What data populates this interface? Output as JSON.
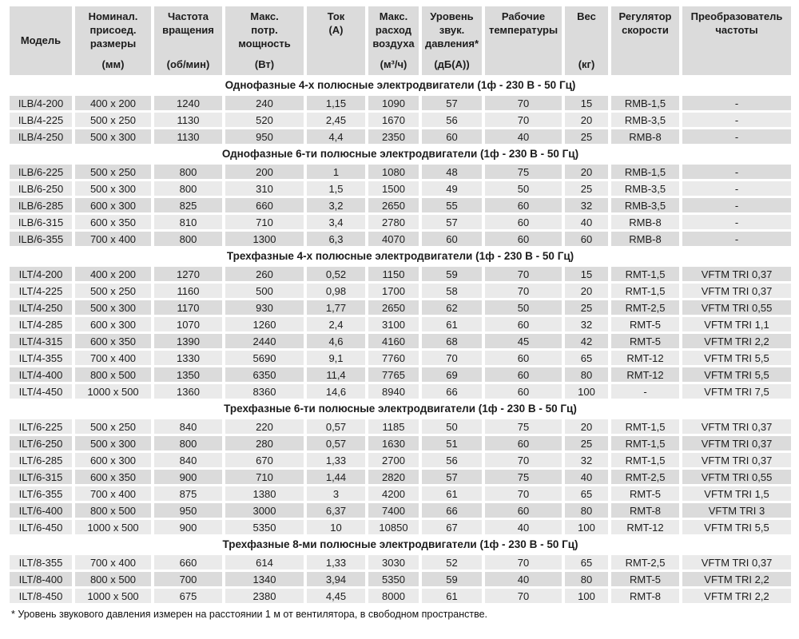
{
  "table": {
    "columns": [
      {
        "lines": [
          "Модель"
        ],
        "unit": "",
        "valign": "center"
      },
      {
        "lines": [
          "Номинал.",
          "присоед.",
          "размеры"
        ],
        "unit": "(мм)",
        "valign": "between"
      },
      {
        "lines": [
          "Частота",
          "вращения"
        ],
        "unit": "(об/мин)",
        "valign": "between"
      },
      {
        "lines": [
          "Макс.",
          "потр.",
          "мощность"
        ],
        "unit": "(Вт)",
        "valign": "between"
      },
      {
        "lines": [
          "Ток",
          "(А)"
        ],
        "unit": "",
        "valign": "top"
      },
      {
        "lines": [
          "Макс.",
          "расход",
          "воздуха"
        ],
        "unit": "(м³/ч)",
        "valign": "between"
      },
      {
        "lines": [
          "Уровень",
          "звук.",
          "давления*"
        ],
        "unit": "(дБ(А))",
        "valign": "between"
      },
      {
        "lines": [
          "Рабочие",
          "температуры"
        ],
        "unit": "",
        "valign": "top"
      },
      {
        "lines": [
          "Вес"
        ],
        "unit": "(кг)",
        "valign": "between"
      },
      {
        "lines": [
          "Регулятор",
          "скорости"
        ],
        "unit": "",
        "valign": "top"
      },
      {
        "lines": [
          "Преобразователь",
          "частоты"
        ],
        "unit": "",
        "valign": "top"
      }
    ],
    "sections": [
      {
        "title": "Однофазные 4-х полюсные электродвигатели (1ф - 230 В - 50 Гц)",
        "start_shade": "dark",
        "rows": [
          [
            "ILB/4-200",
            "400 x 200",
            "1240",
            "240",
            "1,15",
            "1090",
            "57",
            "70",
            "15",
            "RMB-1,5",
            "-"
          ],
          [
            "ILB/4-225",
            "500 x 250",
            "1130",
            "520",
            "2,45",
            "1670",
            "56",
            "70",
            "20",
            "RMB-3,5",
            "-"
          ],
          [
            "ILB/4-250",
            "500 x 300",
            "1130",
            "950",
            "4,4",
            "2350",
            "60",
            "40",
            "25",
            "RMB-8",
            "-"
          ]
        ]
      },
      {
        "title": "Однофазные 6-ти полюсные электродвигатели (1ф - 230 В - 50 Гц)",
        "start_shade": "dark",
        "rows": [
          [
            "ILB/6-225",
            "500 x 250",
            "800",
            "200",
            "1",
            "1080",
            "48",
            "75",
            "20",
            "RMB-1,5",
            "-"
          ],
          [
            "ILB/6-250",
            "500 x 300",
            "800",
            "310",
            "1,5",
            "1500",
            "49",
            "50",
            "25",
            "RMB-3,5",
            "-"
          ],
          [
            "ILB/6-285",
            "600 x 300",
            "825",
            "660",
            "3,2",
            "2650",
            "55",
            "60",
            "32",
            "RMB-3,5",
            "-"
          ],
          [
            "ILB/6-315",
            "600 x 350",
            "810",
            "710",
            "3,4",
            "2780",
            "57",
            "60",
            "40",
            "RMB-8",
            "-"
          ],
          [
            "ILB/6-355",
            "700 x 400",
            "800",
            "1300",
            "6,3",
            "4070",
            "60",
            "60",
            "60",
            "RMB-8",
            "-"
          ]
        ]
      },
      {
        "title": "Трехфазные 4-х полюсные электродвигатели (1ф - 230 В - 50 Гц)",
        "start_shade": "dark",
        "rows": [
          [
            "ILT/4-200",
            "400 x 200",
            "1270",
            "260",
            "0,52",
            "1150",
            "59",
            "70",
            "15",
            "RMT-1,5",
            "VFTM TRI 0,37"
          ],
          [
            "ILT/4-225",
            "500 x 250",
            "1160",
            "500",
            "0,98",
            "1700",
            "58",
            "70",
            "20",
            "RMT-1,5",
            "VFTM TRI 0,37"
          ],
          [
            "ILT/4-250",
            "500 x 300",
            "1170",
            "930",
            "1,77",
            "2650",
            "62",
            "50",
            "25",
            "RMT-2,5",
            "VFTM TRI 0,55"
          ],
          [
            "ILT/4-285",
            "600 x 300",
            "1070",
            "1260",
            "2,4",
            "3100",
            "61",
            "60",
            "32",
            "RMT-5",
            "VFTM TRI 1,1"
          ],
          [
            "ILT/4-315",
            "600 x 350",
            "1390",
            "2440",
            "4,6",
            "4160",
            "68",
            "45",
            "42",
            "RMT-5",
            "VFTM TRI 2,2"
          ],
          [
            "ILT/4-355",
            "700 x 400",
            "1330",
            "5690",
            "9,1",
            "7760",
            "70",
            "60",
            "65",
            "RMT-12",
            "VFTM TRI 5,5"
          ],
          [
            "ILT/4-400",
            "800 x 500",
            "1350",
            "6350",
            "11,4",
            "7765",
            "69",
            "60",
            "80",
            "RMT-12",
            "VFTM TRI 5,5"
          ],
          [
            "ILT/4-450",
            "1000 x 500",
            "1360",
            "8360",
            "14,6",
            "8940",
            "66",
            "60",
            "100",
            "-",
            "VFTM TRI 7,5"
          ]
        ]
      },
      {
        "title": "Трехфазные 6-ти полюсные электродвигатели (1ф - 230 В - 50 Гц)",
        "start_shade": "light",
        "rows": [
          [
            "ILT/6-225",
            "500 x 250",
            "840",
            "220",
            "0,57",
            "1185",
            "50",
            "75",
            "20",
            "RMT-1,5",
            "VFTM TRI 0,37"
          ],
          [
            "ILT/6-250",
            "500 x 300",
            "800",
            "280",
            "0,57",
            "1630",
            "51",
            "60",
            "25",
            "RMT-1,5",
            "VFTM TRI 0,37"
          ],
          [
            "ILT/6-285",
            "600 x 300",
            "840",
            "670",
            "1,33",
            "2700",
            "56",
            "70",
            "32",
            "RMT-1,5",
            "VFTM TRI 0,37"
          ],
          [
            "ILT/6-315",
            "600 x 350",
            "900",
            "710",
            "1,44",
            "2820",
            "57",
            "75",
            "40",
            "RMT-2,5",
            "VFTM TRI 0,55"
          ],
          [
            "ILT/6-355",
            "700 x 400",
            "875",
            "1380",
            "3",
            "4200",
            "61",
            "70",
            "65",
            "RMT-5",
            "VFTM TRI 1,5"
          ],
          [
            "ILT/6-400",
            "800 x 500",
            "950",
            "3000",
            "6,37",
            "7400",
            "66",
            "60",
            "80",
            "RMT-8",
            "VFTM TRI 3"
          ],
          [
            "ILT/6-450",
            "1000 x 500",
            "900",
            "5350",
            "10",
            "10850",
            "67",
            "40",
            "100",
            "RMT-12",
            "VFTM TRI 5,5"
          ]
        ]
      },
      {
        "title": "Трехфазные 8-ми полюсные электродвигатели (1ф - 230 В - 50 Гц)",
        "start_shade": "light",
        "rows": [
          [
            "ILT/8-355",
            "700 x 400",
            "660",
            "614",
            "1,33",
            "3030",
            "52",
            "70",
            "65",
            "RMT-2,5",
            "VFTM TRI 0,37"
          ],
          [
            "ILT/8-400",
            "800 x 500",
            "700",
            "1340",
            "3,94",
            "5350",
            "59",
            "40",
            "80",
            "RMT-5",
            "VFTM TRI 2,2"
          ],
          [
            "ILT/8-450",
            "1000 x 500",
            "675",
            "2380",
            "4,45",
            "8000",
            "61",
            "70",
            "100",
            "RMT-8",
            "VFTM TRI 2,2"
          ]
        ]
      }
    ],
    "footnote": "* Уровень звукового давления измерен на расстоянии 1 м от вентилятора, в свободном пространстве."
  },
  "colors": {
    "row_dark": "#dbdbdb",
    "row_light": "#eaeaea",
    "header_bg": "#dbdbdb",
    "text": "#1c1c1c"
  }
}
